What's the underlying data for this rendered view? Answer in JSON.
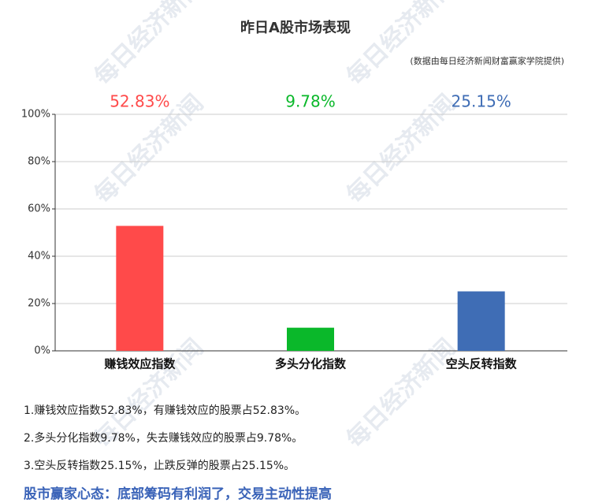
{
  "chart_data": {
    "type": "bar",
    "title": "昨日A股市场表现",
    "subtitle": "(数据由每日经济新闻财富赢家学院提供)",
    "categories": [
      "赚钱效应指数",
      "多头分化指数",
      "空头反转指数"
    ],
    "values": [
      52.83,
      9.78,
      25.15
    ],
    "value_labels": [
      "52.83%",
      "9.78%",
      "25.15%"
    ],
    "colors": [
      "#ff4a4a",
      "#0ab82a",
      "#3f6db5"
    ],
    "ylim": [
      0,
      100
    ],
    "yticks": [
      {
        "value": 0,
        "label": "0%"
      },
      {
        "value": 20,
        "label": "20%"
      },
      {
        "value": 40,
        "label": "40%"
      },
      {
        "value": 60,
        "label": "60%"
      },
      {
        "value": 80,
        "label": "80%"
      },
      {
        "value": 100,
        "label": "100%"
      }
    ],
    "grid": true
  },
  "watermark": "每日经济新闻",
  "notes": [
    "1.赚钱效应指数52.83%，有赚钱效应的股票占52.83%。",
    "2.多头分化指数9.78%，失去赚钱效应的股票占9.78%。",
    "3.空头反转指数25.15%，止跌反弹的股票占25.15%。"
  ],
  "footer": "股市赢家心态：底部筹码有利润了，交易主动性提高"
}
